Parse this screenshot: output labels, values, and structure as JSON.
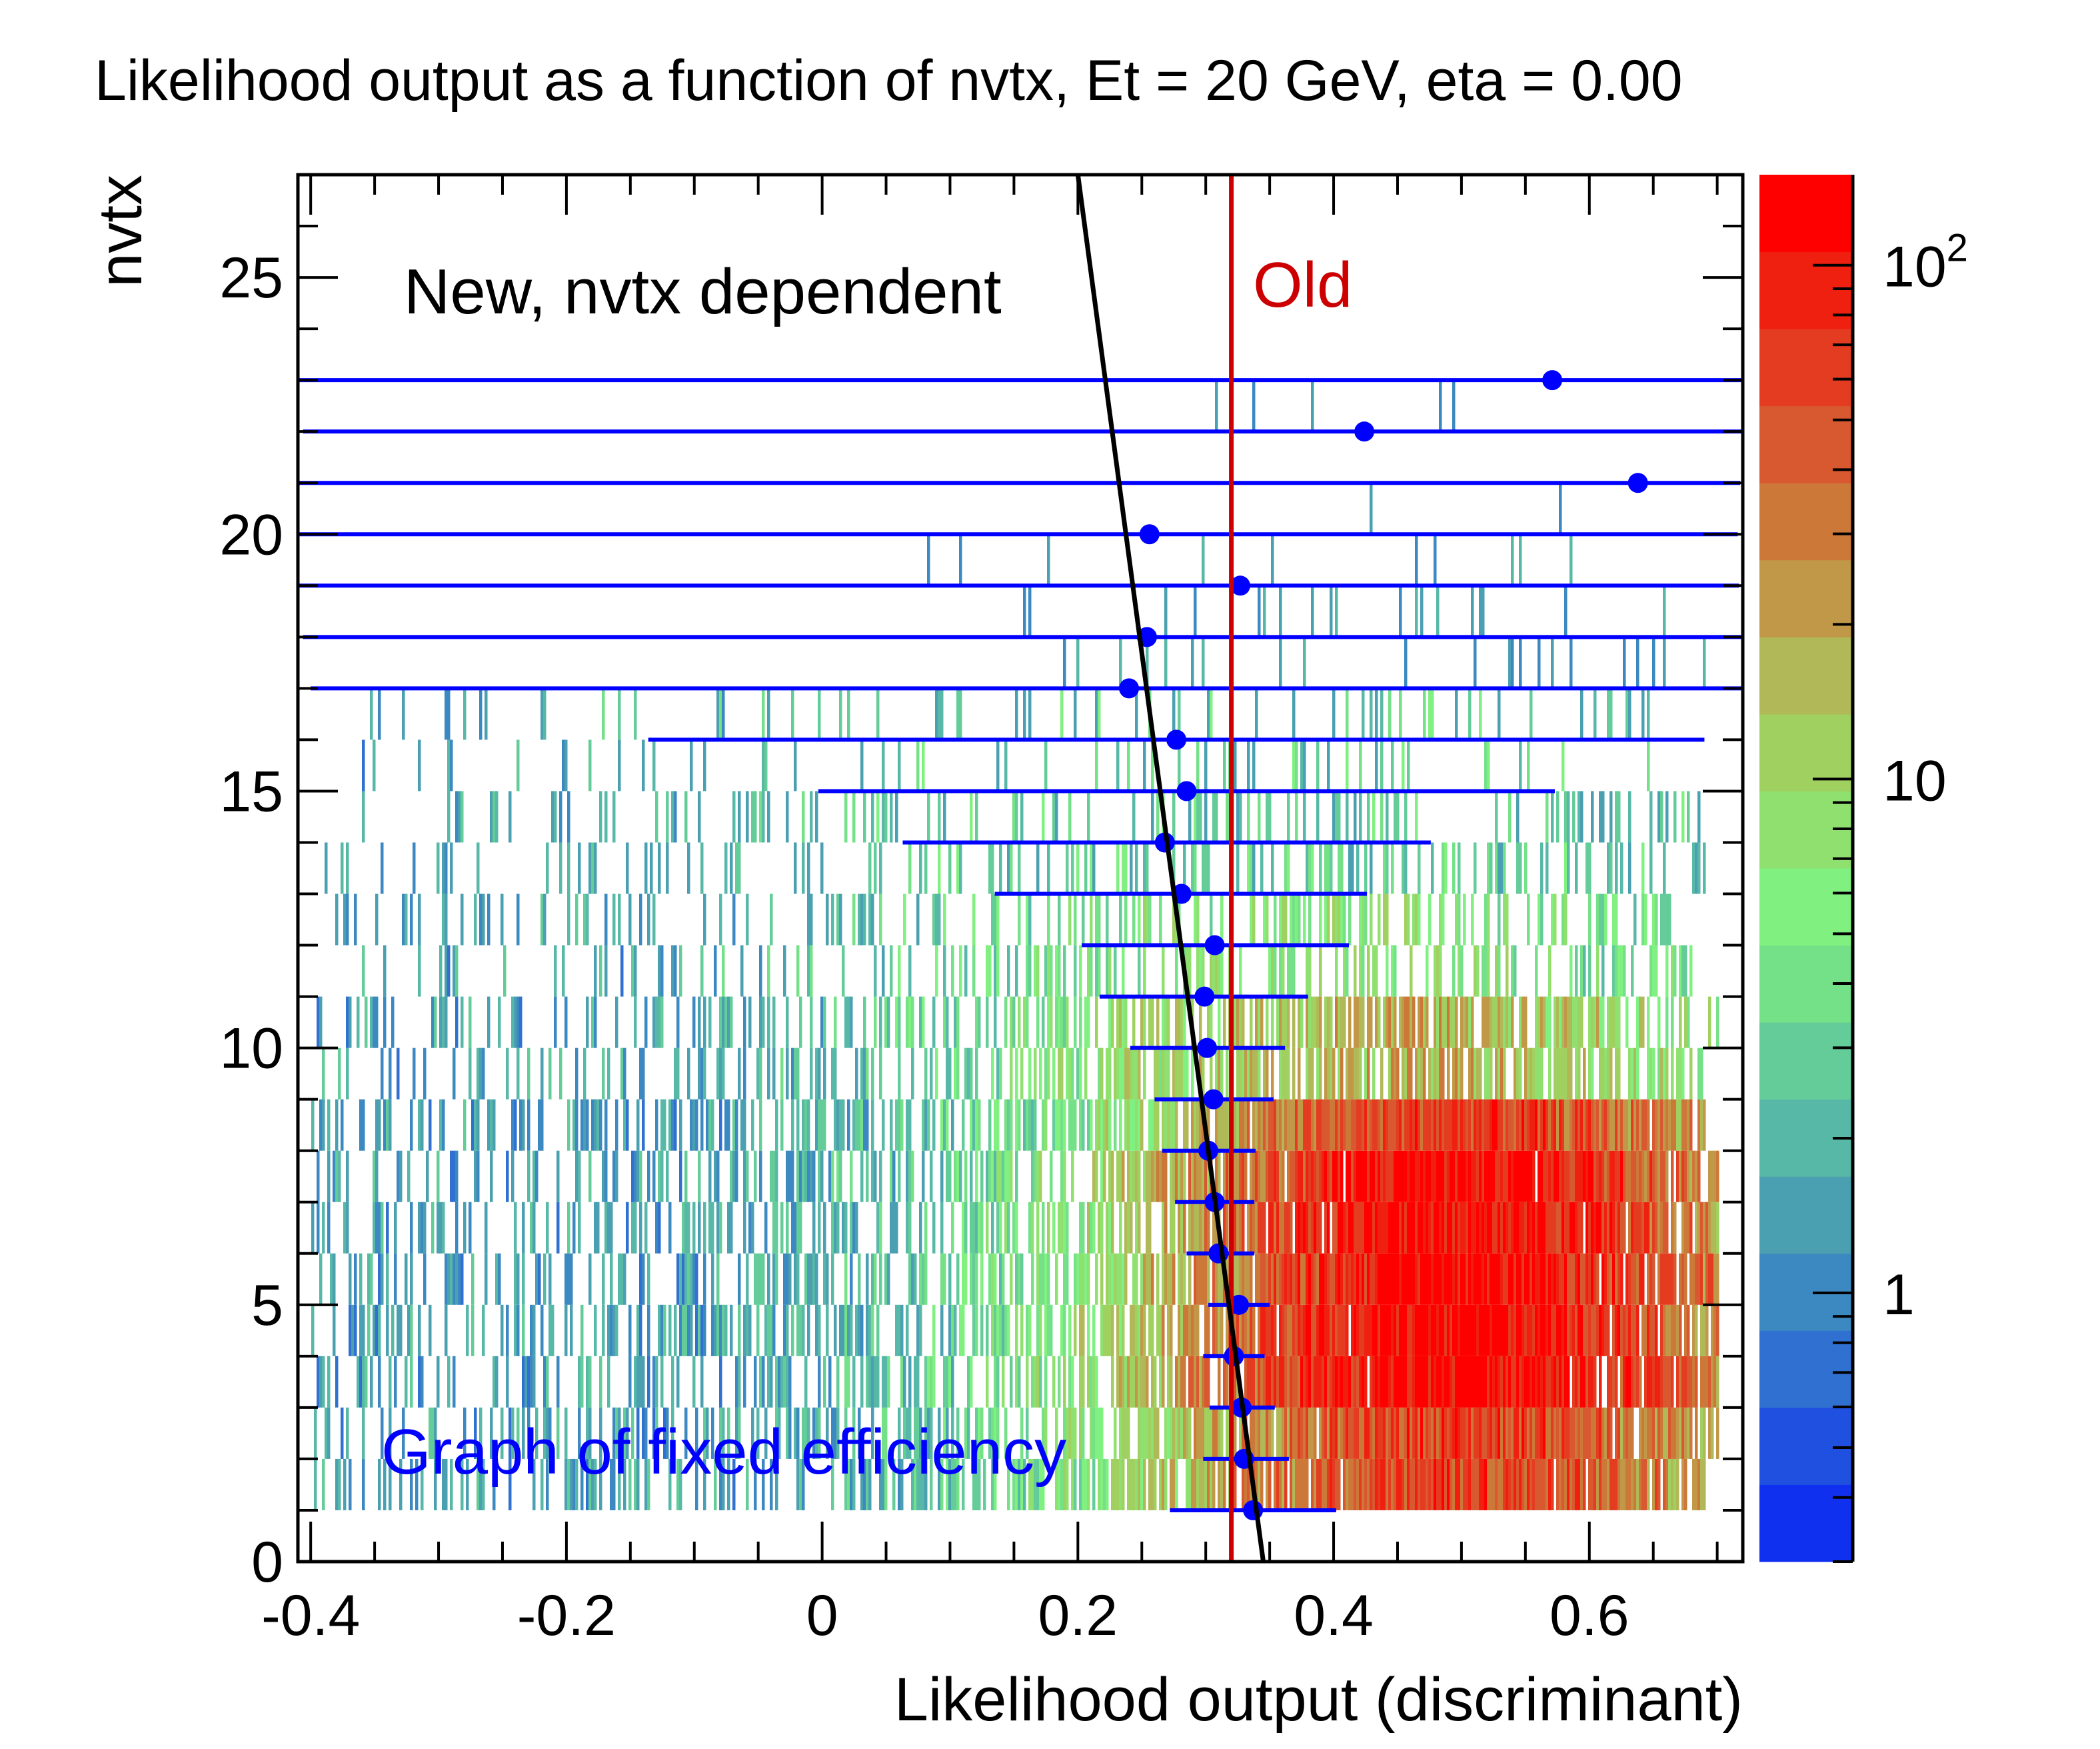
{
  "chart_data": {
    "type": "heatmap",
    "title": "Likelihood output as a function of nvtx, Et = 20 GeV, eta = 0.00",
    "xlabel": "Likelihood output (discriminant)",
    "ylabel": "nvtx",
    "xlim": [
      -0.41,
      0.72
    ],
    "ylim": [
      0,
      27
    ],
    "x_ticks": [
      "-0.4",
      "-0.2",
      "0",
      "0.2",
      "0.4",
      "0.6"
    ],
    "x_tick_values": [
      -0.4,
      -0.2,
      0,
      0.2,
      0.4,
      0.6
    ],
    "y_ticks": [
      "0",
      "5",
      "10",
      "15",
      "20",
      "25"
    ],
    "y_tick_values": [
      0,
      5,
      10,
      15,
      20,
      25
    ],
    "z_scale": "log",
    "z_range": [
      0.3,
      150
    ],
    "z_ticks": [
      {
        "value": 1,
        "label": "1"
      },
      {
        "value": 10,
        "label": "10"
      },
      {
        "value": 100,
        "label": "10",
        "sup": "2"
      }
    ],
    "colors": {
      "graph": "#0000ff",
      "new_line": "#000000",
      "old_line": "#cc0000",
      "palette": [
        "#1030f0",
        "#2050e0",
        "#3070d0",
        "#3c88c0",
        "#4aa0b0",
        "#58b8a8",
        "#64cc98",
        "#74e088",
        "#80f080",
        "#90e070",
        "#a0d060",
        "#b0b858",
        "#c09848",
        "#cc7838",
        "#d85830",
        "#e43c20",
        "#f02010",
        "#ff0000"
      ]
    },
    "graph_of_fixed_efficiency": [
      {
        "nvtx": 1,
        "x": 0.337,
        "xerr_low": 0.065,
        "xerr_high": 0.065
      },
      {
        "nvtx": 2,
        "x": 0.33,
        "xerr_low": 0.032,
        "xerr_high": 0.035
      },
      {
        "nvtx": 3,
        "x": 0.328,
        "xerr_low": 0.025,
        "xerr_high": 0.026
      },
      {
        "nvtx": 4,
        "x": 0.322,
        "xerr_low": 0.024,
        "xerr_high": 0.024
      },
      {
        "nvtx": 5,
        "x": 0.326,
        "xerr_low": 0.024,
        "xerr_high": 0.024
      },
      {
        "nvtx": 6,
        "x": 0.31,
        "xerr_low": 0.025,
        "xerr_high": 0.028
      },
      {
        "nvtx": 7,
        "x": 0.307,
        "xerr_low": 0.031,
        "xerr_high": 0.031
      },
      {
        "nvtx": 8,
        "x": 0.302,
        "xerr_low": 0.036,
        "xerr_high": 0.037
      },
      {
        "nvtx": 9,
        "x": 0.306,
        "xerr_low": 0.046,
        "xerr_high": 0.047
      },
      {
        "nvtx": 10,
        "x": 0.301,
        "xerr_low": 0.06,
        "xerr_high": 0.061
      },
      {
        "nvtx": 11,
        "x": 0.299,
        "xerr_low": 0.082,
        "xerr_high": 0.081
      },
      {
        "nvtx": 12,
        "x": 0.307,
        "xerr_low": 0.104,
        "xerr_high": 0.105
      },
      {
        "nvtx": 13,
        "x": 0.281,
        "xerr_low": 0.146,
        "xerr_high": 0.145
      },
      {
        "nvtx": 14,
        "x": 0.268,
        "xerr_low": 0.205,
        "xerr_high": 0.208
      },
      {
        "nvtx": 15,
        "x": 0.285,
        "xerr_low": 0.288,
        "xerr_high": 0.288
      },
      {
        "nvtx": 16,
        "x": 0.277,
        "xerr_low": 0.413,
        "xerr_high": 0.413
      },
      {
        "nvtx": 17,
        "x": 0.24,
        "xerr_low": 0.64,
        "xerr_high": 0.48
      },
      {
        "nvtx": 18,
        "x": 0.254,
        "xerr_low": 0.66,
        "xerr_high": 0.47
      },
      {
        "nvtx": 19,
        "x": 0.327,
        "xerr_low": 0.74,
        "xerr_high": 0.39
      },
      {
        "nvtx": 20,
        "x": 0.256,
        "xerr_low": 0.67,
        "xerr_high": 0.46
      },
      {
        "nvtx": 21,
        "x": 0.638,
        "xerr_low": 1.05,
        "xerr_high": 0.08
      },
      {
        "nvtx": 22,
        "x": 0.424,
        "xerr_low": 0.83,
        "xerr_high": 0.3
      },
      {
        "nvtx": 23,
        "x": 0.571,
        "xerr_low": 0.98,
        "xerr_high": 0.15
      }
    ],
    "new_line": {
      "x_at_nvtx0": 0.345,
      "x_at_nvtx27": 0.2
    },
    "old_line_x": 0.32,
    "annotations": {
      "new_label": "New, nvtx dependent",
      "old_label": "Old",
      "graph_label": "Graph of fixed efficiency"
    }
  }
}
